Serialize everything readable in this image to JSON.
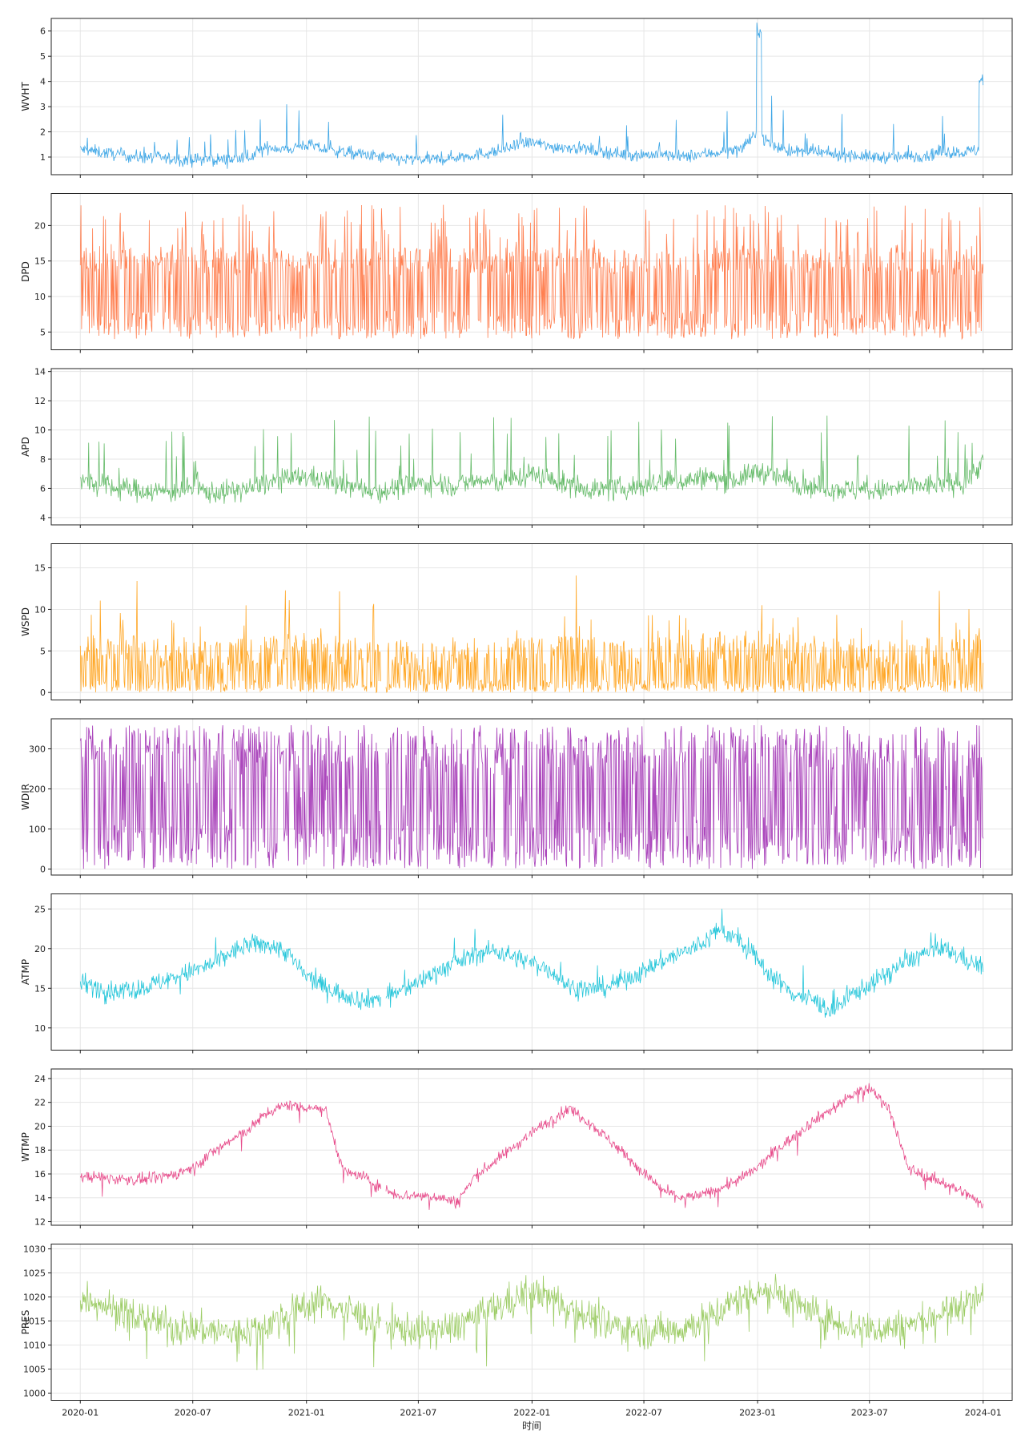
{
  "chart_data": {
    "type": "line",
    "xlabel": "时间",
    "x_ticks": [
      "2020-01",
      "2020-07",
      "2021-01",
      "2021-07",
      "2022-01",
      "2022-07",
      "2023-01",
      "2023-07",
      "2024-01"
    ],
    "x_range": [
      "2020-01",
      "2024-01"
    ],
    "grid": true,
    "panels": [
      {
        "ylabel": "WVHT",
        "color": "#3da6e6",
        "ylim": [
          0.3,
          6.5
        ],
        "yticks": [
          1,
          2,
          3,
          4,
          5,
          6
        ],
        "series": [
          {
            "values": [
              1.3,
              1.2,
              1.1,
              1.0,
              1.0,
              0.9,
              0.9,
              0.9,
              0.9,
              1.0,
              1.4,
              1.3,
              1.5,
              1.3,
              1.2,
              1.1,
              1.0,
              0.9,
              0.9,
              0.9,
              1.0,
              1.1,
              1.2,
              1.4,
              1.6,
              1.4,
              1.4,
              1.3,
              1.2,
              1.1,
              1.1,
              1.1,
              1.0,
              1.1,
              1.2,
              1.3,
              1.9,
              1.4,
              1.2,
              1.2,
              1.1,
              1.1,
              1.0,
              1.0,
              1.0,
              1.1,
              1.2,
              1.2,
              1.3
            ]
          }
        ]
      },
      {
        "ylabel": "DPD",
        "color": "#ff7f50",
        "ylim": [
          2.5,
          24.5
        ],
        "yticks": [
          5,
          10,
          15,
          20
        ],
        "series": [
          {
            "values": [
              12,
              11,
              11,
              10,
              10,
              9,
              9,
              11,
              11,
              12,
              12,
              12,
              13,
              12,
              12,
              11,
              10,
              9,
              9,
              10,
              11,
              12,
              12,
              12,
              12,
              12,
              12,
              11,
              10,
              9,
              10,
              10,
              11,
              11,
              12,
              12,
              13,
              12,
              12,
              11,
              10,
              9,
              9,
              10,
              11,
              12,
              12,
              12,
              13
            ]
          }
        ]
      },
      {
        "ylabel": "APD",
        "color": "#66bb6a",
        "ylim": [
          3.5,
          14.2
        ],
        "yticks": [
          4,
          6,
          8,
          10,
          12,
          14
        ],
        "series": [
          {
            "values": [
              6.5,
              6.2,
              6.0,
              5.9,
              5.8,
              5.8,
              6.0,
              5.7,
              5.8,
              6.0,
              6.4,
              6.6,
              6.8,
              6.5,
              6.2,
              6.0,
              5.8,
              6.1,
              6.3,
              6.4,
              6.2,
              6.5,
              6.4,
              6.6,
              7.0,
              6.6,
              6.2,
              6.0,
              5.9,
              6.0,
              6.2,
              6.4,
              6.5,
              6.7,
              6.6,
              6.6,
              7.2,
              6.8,
              6.4,
              6.1,
              6.0,
              5.9,
              5.8,
              5.9,
              6.1,
              6.2,
              6.3,
              6.4,
              7.8
            ]
          }
        ]
      },
      {
        "ylabel": "WSPD",
        "color": "#ffa726",
        "ylim": [
          -0.9,
          17.9
        ],
        "yticks": [
          0,
          5,
          10,
          15
        ],
        "series": [
          {
            "values": [
              3.0,
              3.2,
              3.0,
              2.8,
              2.6,
              2.4,
              2.2,
              2.3,
              2.4,
              2.6,
              3.0,
              3.1,
              3.3,
              3.0,
              2.8,
              2.6,
              2.5,
              2.4,
              2.3,
              2.5,
              2.7,
              3.0,
              3.4,
              3.5,
              3.6,
              3.2,
              2.9,
              2.7,
              2.6,
              2.5,
              2.6,
              2.8,
              3.0,
              3.2,
              3.5,
              3.6,
              3.8,
              3.6,
              3.2,
              2.9,
              2.7,
              2.5,
              2.4,
              2.4,
              2.6,
              2.8,
              3.0,
              3.1,
              3.2
            ]
          }
        ]
      },
      {
        "ylabel": "WDIR",
        "color": "#ab47bc",
        "ylim": [
          -15,
          375
        ],
        "yticks": [
          0,
          100,
          200,
          300
        ],
        "series": [
          {
            "values": [
              180,
              175,
              185,
              170,
              190,
              180,
              175,
              185,
              180,
              175,
              180,
              185,
              175,
              180,
              190,
              185,
              175,
              180,
              175,
              185,
              180,
              175,
              180,
              185,
              175,
              180,
              185,
              180,
              175,
              180,
              185,
              175,
              180,
              185,
              180,
              175,
              180,
              185,
              175,
              180,
              185,
              180,
              175,
              180,
              185,
              175,
              180,
              185,
              180
            ]
          }
        ]
      },
      {
        "ylabel": "ATMP",
        "color": "#26c6da",
        "ylim": [
          7.2,
          26.9
        ],
        "yticks": [
          10,
          15,
          20,
          25
        ],
        "series": [
          {
            "values": [
              15.8,
              15.0,
              14.6,
              14.9,
              15.6,
              16.4,
              17.2,
              18.0,
              19.5,
              20.5,
              20.5,
              19.5,
              16.5,
              15.2,
              14.2,
              13.5,
              13.8,
              14.6,
              15.8,
              17.2,
              18.2,
              19.3,
              19.8,
              19.0,
              18.2,
              17.3,
              15.2,
              14.8,
              15.2,
              16.2,
              17.2,
              18.5,
              19.5,
              20.5,
              22.5,
              21.0,
              18.5,
              16.0,
              14.2,
              13.5,
              12.0,
              14.2,
              15.5,
              17.0,
              18.5,
              19.5,
              19.8,
              18.8,
              17.5
            ]
          }
        ]
      },
      {
        "ylabel": "WTMP",
        "color": "#e74c8b",
        "ylim": [
          11.7,
          24.8
        ],
        "yticks": [
          12,
          14,
          16,
          18,
          20,
          22,
          24
        ],
        "series": [
          {
            "values": [
              15.8,
              15.7,
              15.6,
              15.5,
              15.6,
              16.0,
              16.5,
              17.8,
              18.8,
              19.8,
              21.2,
              21.8,
              21.6,
              21.5,
              16.2,
              15.8,
              14.8,
              14.2,
              14.2,
              14.1,
              13.6,
              15.8,
              17.0,
              18.2,
              19.5,
              20.5,
              21.5,
              20.4,
              19.0,
              17.6,
              16.0,
              14.6,
              14.0,
              14.2,
              14.8,
              15.5,
              16.5,
              18.0,
              19.2,
              20.5,
              21.5,
              22.6,
              23.2,
              21.5,
              16.5,
              15.8,
              15.2,
              14.4,
              13.4
            ]
          }
        ]
      },
      {
        "ylabel": "PRES",
        "color": "#9ccc65",
        "ylim": [
          998.5,
          1031
        ],
        "yticks": [
          1000,
          1005,
          1010,
          1015,
          1020,
          1025,
          1030
        ],
        "series": [
          {
            "values": [
              1020,
              1019,
              1017,
              1016,
              1015,
              1014,
              1013.5,
              1013,
              1012.5,
              1013,
              1014.5,
              1016,
              1018.5,
              1019,
              1017.5,
              1016,
              1014.5,
              1013.5,
              1013,
              1013,
              1014,
              1016,
              1017.5,
              1019.5,
              1021,
              1020,
              1018,
              1016,
              1014.5,
              1013.5,
              1013,
              1013,
              1013.5,
              1015,
              1017,
              1019.5,
              1021.5,
              1021,
              1019,
              1016.5,
              1015,
              1014,
              1013.5,
              1013.5,
              1014,
              1015.5,
              1017,
              1018.5,
              1020
            ]
          }
        ]
      }
    ]
  }
}
